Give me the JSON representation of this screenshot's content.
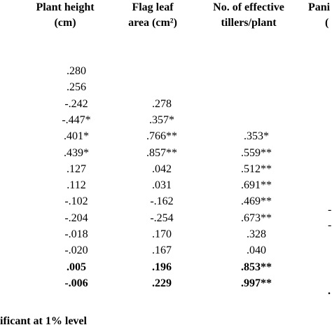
{
  "headers": {
    "plant_height": [
      "Plant height",
      "(cm)"
    ],
    "flag_leaf": [
      "Flag leaf",
      "area (cm²)"
    ],
    "tillers": [
      "No. of effective",
      "tillers/plant"
    ],
    "panicle": [
      "Pani",
      "("
    ]
  },
  "rows": [
    {
      "ph": ".280",
      "fl": "",
      "nt": "",
      "bold": false
    },
    {
      "ph": ".256",
      "fl": "",
      "nt": "",
      "bold": false
    },
    {
      "ph": "-.242",
      "fl": ".278",
      "nt": "",
      "bold": false
    },
    {
      "ph": "-.447*",
      "fl": ".357*",
      "nt": "",
      "bold": false
    },
    {
      "ph": ".401*",
      "fl": ".766**",
      "nt": ".353*",
      "bold": false
    },
    {
      "ph": ".439*",
      "fl": ".857**",
      "nt": ".559**",
      "bold": false
    },
    {
      "ph": ".127",
      "fl": ".042",
      "nt": ".512**",
      "bold": false
    },
    {
      "ph": ".112",
      "fl": ".031",
      "nt": ".691**",
      "bold": false
    },
    {
      "ph": "-.102",
      "fl": "-.162",
      "nt": ".469**",
      "bold": false
    },
    {
      "ph": "-.204",
      "fl": "-.254",
      "nt": ".673**",
      "bold": false
    },
    {
      "ph": "-.018",
      "fl": ".170",
      "nt": ".328",
      "bold": false
    },
    {
      "ph": "-.020",
      "fl": ".167",
      "nt": ".040",
      "bold": false
    },
    {
      "ph": ".005",
      "fl": ".196",
      "nt": ".853**",
      "bold": true
    },
    {
      "ph": "-.006",
      "fl": ".229",
      "nt": ".997**",
      "bold": true
    }
  ],
  "edge_marks": [
    "-",
    "-",
    "."
  ],
  "footnote": "ificant at 1% level"
}
